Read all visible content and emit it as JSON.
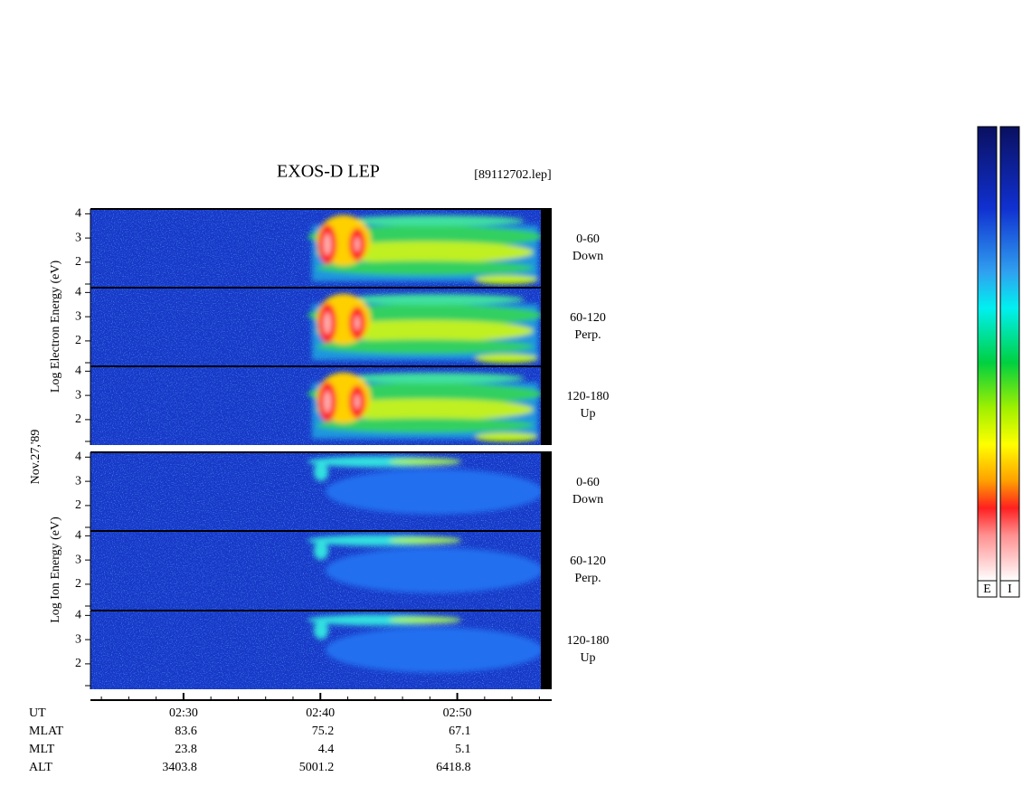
{
  "header": {
    "title": "EXOS-D LEP",
    "file": "[89112702.lep]"
  },
  "date": "Nov.27,'89",
  "groups": [
    {
      "axis_label": "Log  Electron  Energy  (eV)",
      "panels": [
        {
          "angle": "0-60",
          "direction": "Down"
        },
        {
          "angle": "60-120",
          "direction": "Perp."
        },
        {
          "angle": "120-180",
          "direction": "Up"
        }
      ]
    },
    {
      "axis_label": "Log  Ion  Energy  (eV)",
      "panels": [
        {
          "angle": "0-60",
          "direction": "Down"
        },
        {
          "angle": "60-120",
          "direction": "Perp."
        },
        {
          "angle": "120-180",
          "direction": "Up"
        }
      ]
    }
  ],
  "ylim": [
    0.95,
    4.2
  ],
  "yticks": [
    2,
    3,
    4
  ],
  "x_axis": {
    "xlim": [
      23.2,
      56.9
    ],
    "xticks": [
      {
        "value": 30,
        "label": "02:30"
      },
      {
        "value": 40,
        "label": "02:40"
      },
      {
        "value": 50,
        "label": "02:50"
      }
    ]
  },
  "orbit": {
    "rows": [
      {
        "label": "UT"
      },
      {
        "label": "MLAT",
        "values": [
          83.6,
          75.2,
          67.1
        ]
      },
      {
        "label": "MLT",
        "values": [
          23.8,
          4.4,
          5.1
        ]
      },
      {
        "label": "ALT",
        "values": [
          3403.8,
          5001.2,
          6418.8
        ]
      }
    ]
  },
  "colorbar": {
    "labels": [
      "E",
      "I"
    ]
  }
}
